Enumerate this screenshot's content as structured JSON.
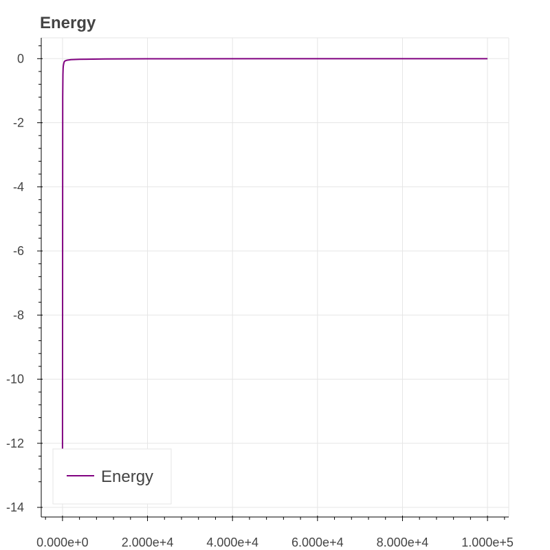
{
  "chart_data": {
    "type": "line",
    "title": "Energy",
    "xlabel": "",
    "ylabel": "",
    "xlim": [
      -5000,
      105000
    ],
    "ylim": [
      -14.3,
      0.65
    ],
    "grid": true,
    "legend": {
      "position": "bottom-left",
      "entries": [
        "Energy"
      ]
    },
    "x_ticks": [
      0,
      20000,
      40000,
      60000,
      80000,
      100000
    ],
    "x_tick_labels": [
      "0.000e+0",
      "2.000e+4",
      "4.000e+4",
      "6.000e+4",
      "8.000e+4",
      "1.000e+5"
    ],
    "y_ticks": [
      0,
      -2,
      -4,
      -6,
      -8,
      -10,
      -12,
      -14
    ],
    "y_tick_labels": [
      "0",
      "-2",
      "-4",
      "-6",
      "-8",
      "-10",
      "-12",
      "-14"
    ],
    "series": [
      {
        "name": "Energy",
        "color": "#800080",
        "x": [
          0,
          50,
          100,
          150,
          200,
          300,
          400,
          600,
          1000,
          2000,
          4000,
          10000,
          20000,
          50000,
          100000
        ],
        "y": [
          -12.2,
          -1.2,
          -0.5,
          -0.3,
          -0.22,
          -0.15,
          -0.1,
          -0.07,
          -0.05,
          -0.03,
          -0.02,
          -0.01,
          -0.005,
          -0.002,
          -0.001
        ]
      }
    ]
  }
}
